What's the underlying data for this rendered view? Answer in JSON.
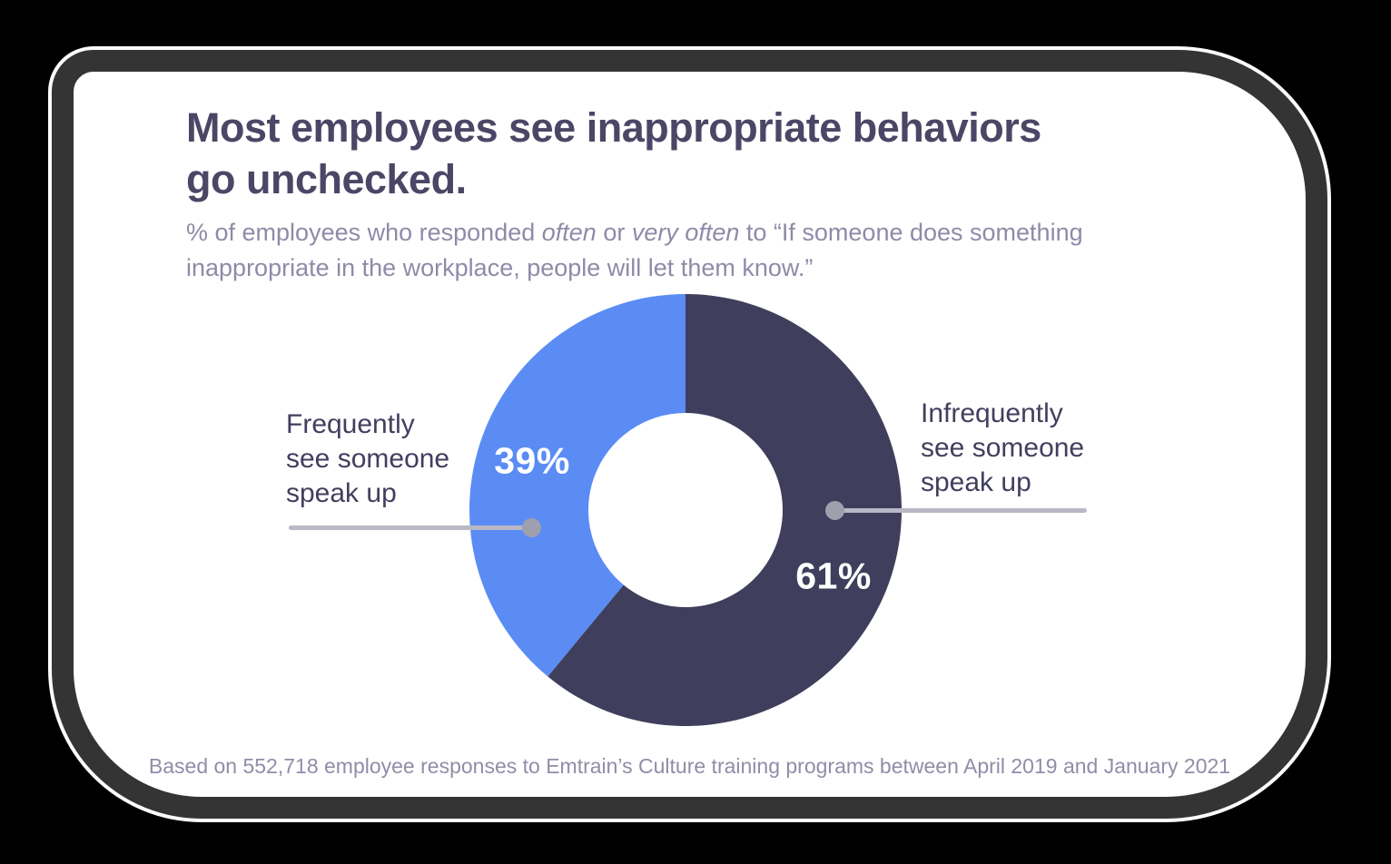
{
  "card": {
    "title": "Most employees see inappropriate behaviors\ngo unchecked.",
    "subtitle_segments": [
      {
        "t": "% of employees who responded ",
        "i": false
      },
      {
        "t": "often",
        "i": true
      },
      {
        "t": " or ",
        "i": false
      },
      {
        "t": "very often",
        "i": true
      },
      {
        "t": " to “If someone does something",
        "i": false
      },
      {
        "br": true
      },
      {
        "t": "inappropriate in the workplace, people will let them know.”",
        "i": false
      }
    ],
    "footer": "Based on 552,718 employee responses to Emtrain’s Culture training programs between April 2019 and January 2021"
  },
  "labels": {
    "left": "Frequently\nsee someone\nspeak up",
    "right": "Infrequently\nsee someone\nspeak up"
  },
  "chart_data": {
    "type": "pie",
    "variant": "donut",
    "title": "Most employees see inappropriate behaviors go unchecked.",
    "subtitle": "% of employees who responded often or very often to “If someone does something inappropriate in the workplace, people will let them know.”",
    "categories": [
      "Infrequently see someone speak up",
      "Frequently see someone speak up"
    ],
    "values": [
      61,
      39
    ],
    "value_labels": [
      "61%",
      "39%"
    ],
    "colors": [
      "#3f3e5c",
      "#5b8cf4"
    ],
    "start_angle_deg": 0,
    "direction": "clockwise",
    "inner_radius_ratio": 0.45,
    "legend_position": "callout-labels",
    "source_note": "Based on 552,718 employee responses to Emtrain’s Culture training programs between April 2019 and January 2021"
  },
  "style": {
    "page_background": "#000000",
    "card_background": "#ffffff",
    "card_border": "#343434",
    "title_color": "#4a4766",
    "subtitle_color": "#8e8ba8",
    "label_color": "#413f5e",
    "footer_color": "#908da8",
    "leader_line_color": "#b9b8c6",
    "leader_dot_color": "#a09fae"
  }
}
